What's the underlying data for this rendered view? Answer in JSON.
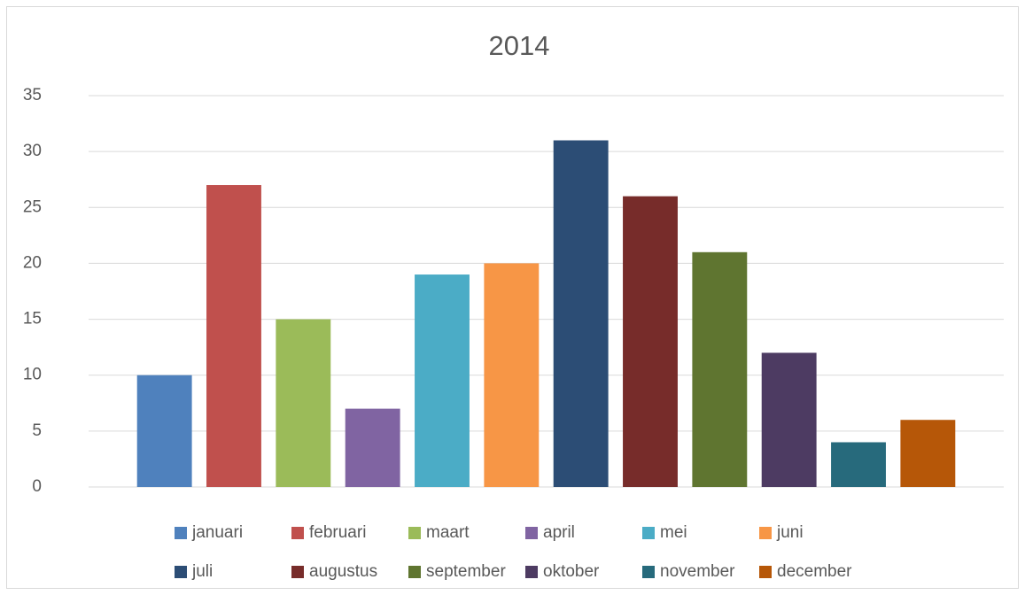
{
  "chart_data": {
    "type": "bar",
    "title": "2014",
    "categories": [
      null
    ],
    "series": [
      {
        "name": "januari",
        "color": "#4F81BD",
        "values": [
          10
        ]
      },
      {
        "name": "februari",
        "color": "#C0504D",
        "values": [
          27
        ]
      },
      {
        "name": "maart",
        "color": "#9BBB59",
        "values": [
          15
        ]
      },
      {
        "name": "april",
        "color": "#8064A2",
        "values": [
          7
        ]
      },
      {
        "name": "mei",
        "color": "#4BACC6",
        "values": [
          19
        ]
      },
      {
        "name": "juni",
        "color": "#F79646",
        "values": [
          20
        ]
      },
      {
        "name": "juli",
        "color": "#2C4D75",
        "values": [
          31
        ]
      },
      {
        "name": "augustus",
        "color": "#772C2A",
        "values": [
          26
        ]
      },
      {
        "name": "september",
        "color": "#5F7530",
        "values": [
          21
        ]
      },
      {
        "name": "oktober",
        "color": "#4D3B62",
        "values": [
          12
        ]
      },
      {
        "name": "november",
        "color": "#276A7C",
        "values": [
          4
        ]
      },
      {
        "name": "december",
        "color": "#B65708",
        "values": [
          6
        ]
      }
    ],
    "ylim": [
      0,
      35
    ],
    "yticks": [
      0,
      5,
      10,
      15,
      20,
      25,
      30,
      35
    ],
    "grid": true,
    "legend": "bottom"
  }
}
